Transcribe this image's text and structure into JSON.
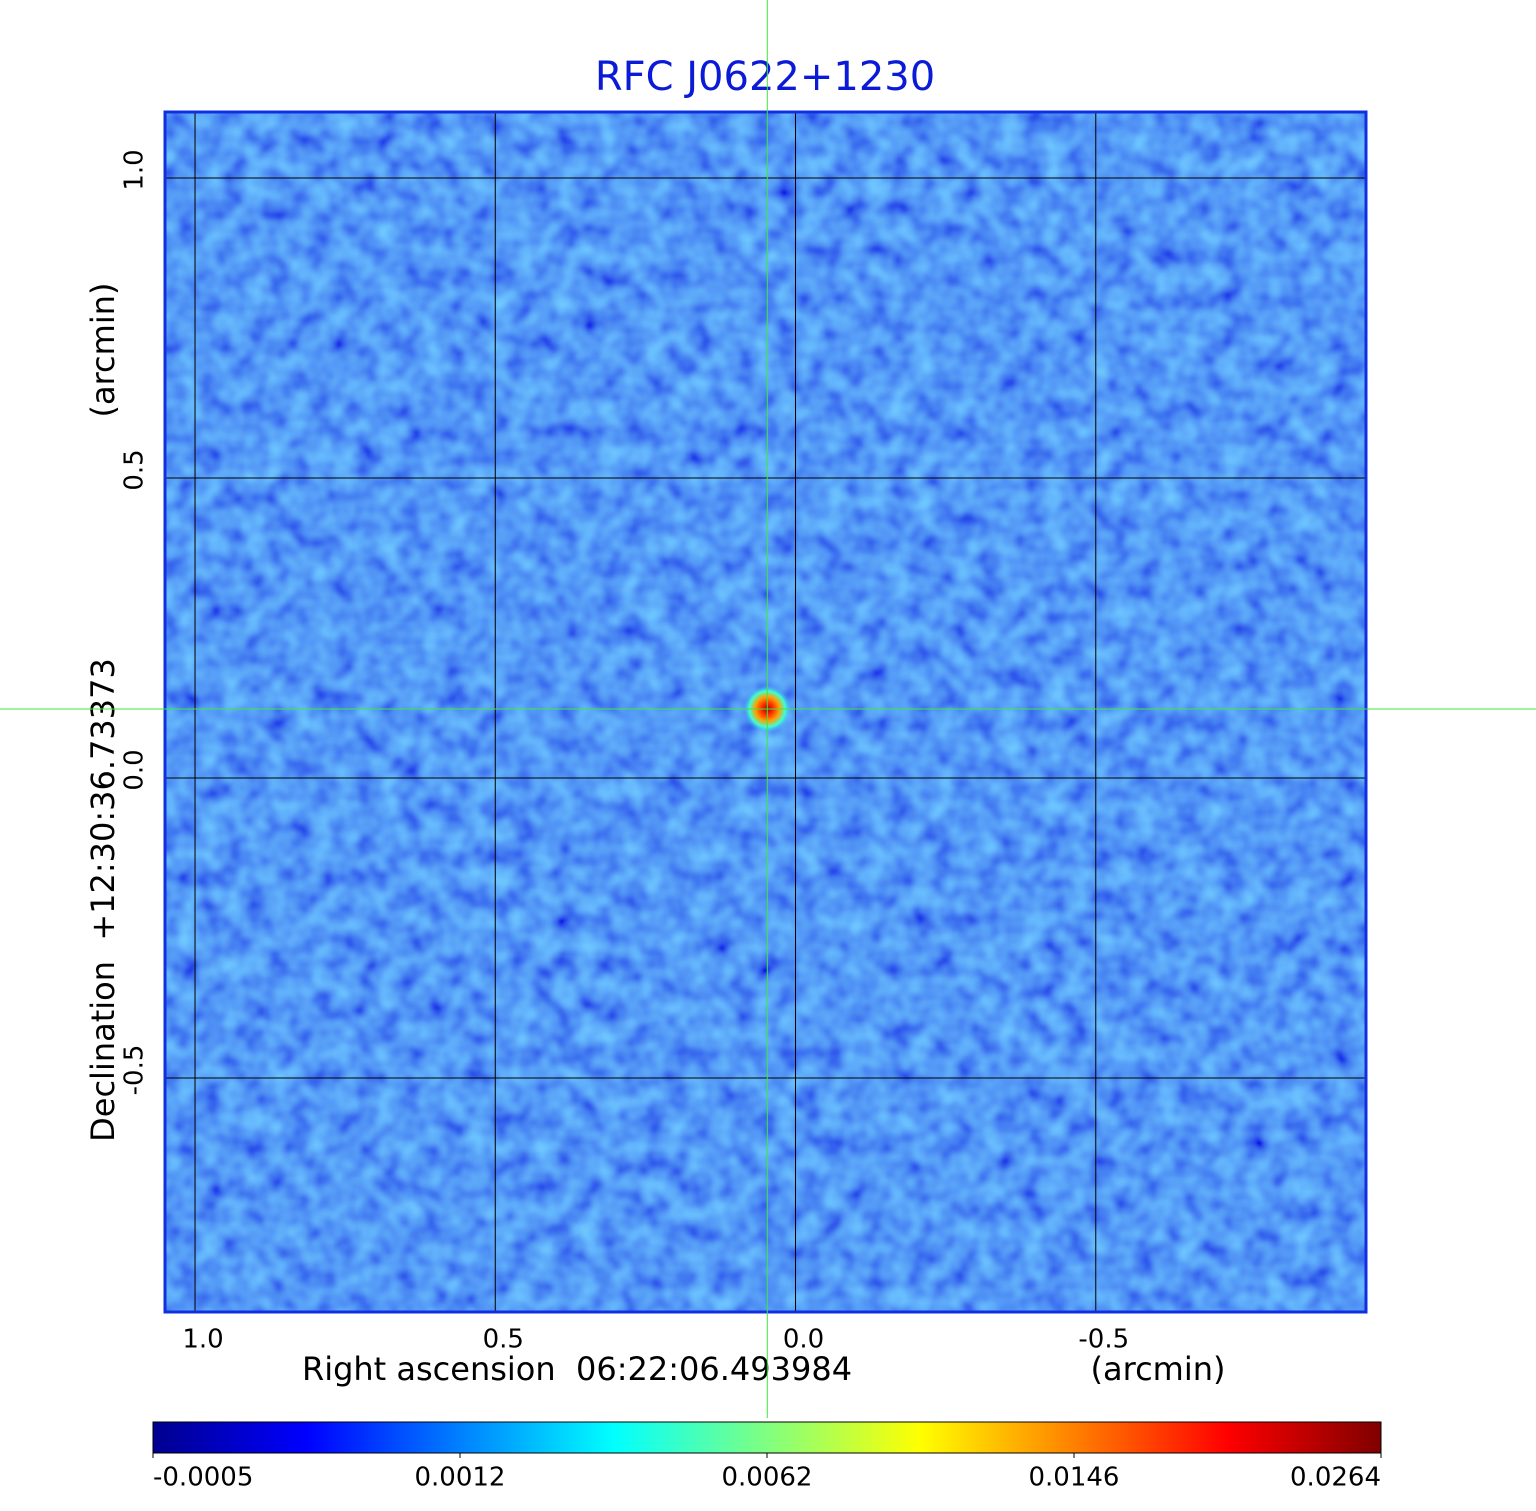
{
  "chart_data": {
    "type": "image",
    "title": "RFC J0622+1230",
    "x_label": "Right ascension  06:22:06.493984",
    "x_unit": "(arcmin)",
    "y_label": "Declination  +12:30:36.73373",
    "y_unit": "(arcmin)",
    "xlim": [
      1.05,
      -0.95
    ],
    "ylim": [
      -0.89,
      1.11
    ],
    "xticks": [
      {
        "value": 1,
        "label": "1.0"
      },
      0.5,
      {
        "value": 0,
        "label": "0.0"
      },
      -0.5
    ],
    "yticks": [
      -0.5,
      {
        "value": 0,
        "label": "0.0"
      },
      0.5,
      {
        "value": 1,
        "label": "1.0"
      }
    ],
    "grid": true,
    "background_color": "#2a5cf2",
    "source": {
      "x": 0.047,
      "y": 0.115,
      "peak": 0.0264
    },
    "crosshair_color": "#3ee83e",
    "colorbar": {
      "ticks": [
        -0.0005,
        0.0012,
        0.0062,
        0.0146,
        0.0264
      ],
      "colormap": [
        "#00008f",
        "#0000ff",
        "#0080ff",
        "#00ffff",
        "#80ff80",
        "#ffff00",
        "#ff8000",
        "#ff0000",
        "#800000"
      ]
    }
  }
}
